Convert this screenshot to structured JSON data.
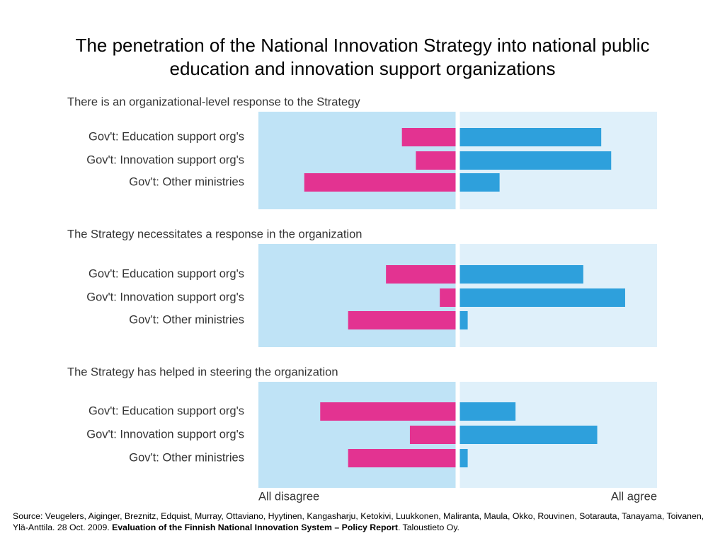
{
  "title": [
    "The penetration of the National Innovation Strategy into national public",
    "education and innovation support organizations"
  ],
  "source": [
    "Source: Veugelers, Aiginger, Breznitz, Edquist, Murray, Ottaviano, Hyytinen, Kangasharju, Ketokivi, Luukkonen, Maliranta, Maula, Okko, Rouvinen, Sotarauta, Tanayama, Toivanen, Ylä-Anttila. 28 Oct. 2009. ",
    "Evaluation of the Finnish National Innovation System – Policy Report",
    ". Taloustieto Oy."
  ],
  "chart_data": [
    {
      "type": "bar",
      "title": "There is an organizational-level response to the Strategy",
      "categories": [
        "Gov't: Education support org's",
        "Gov't: Innovation support org's",
        "Gov't: Other ministries"
      ],
      "series": [
        {
          "color": "#e33391",
          "values": [
            -28,
            -21,
            -77
          ]
        },
        {
          "color": "#2ea0dc",
          "values": [
            72,
            77,
            21
          ]
        }
      ],
      "xlim": [
        -100,
        100
      ]
    },
    {
      "type": "bar",
      "title": "The Strategy necessitates a response in the organization",
      "categories": [
        "Gov't: Education support org's",
        "Gov't: Innovation support org's",
        "Gov't: Other ministries"
      ],
      "series": [
        {
          "color": "#e33391",
          "values": [
            -36,
            -9,
            -55
          ]
        },
        {
          "color": "#2ea0dc",
          "values": [
            63,
            84,
            5
          ]
        }
      ],
      "xlim": [
        -100,
        100
      ]
    },
    {
      "type": "bar",
      "title": "The Strategy has helped in steering the organization",
      "categories": [
        "Gov't: Education support org's",
        "Gov't: Innovation support org's",
        "Gov't: Other ministries"
      ],
      "series": [
        {
          "color": "#e33391",
          "values": [
            -69,
            -24,
            -55
          ]
        },
        {
          "color": "#2ea0dc",
          "values": [
            29,
            70,
            5
          ]
        }
      ],
      "xlim": [
        -100,
        100
      ],
      "xticks": [
        {
          "value": -100,
          "label": "All disagree"
        },
        {
          "value": 100,
          "label": "All agree"
        }
      ]
    }
  ]
}
